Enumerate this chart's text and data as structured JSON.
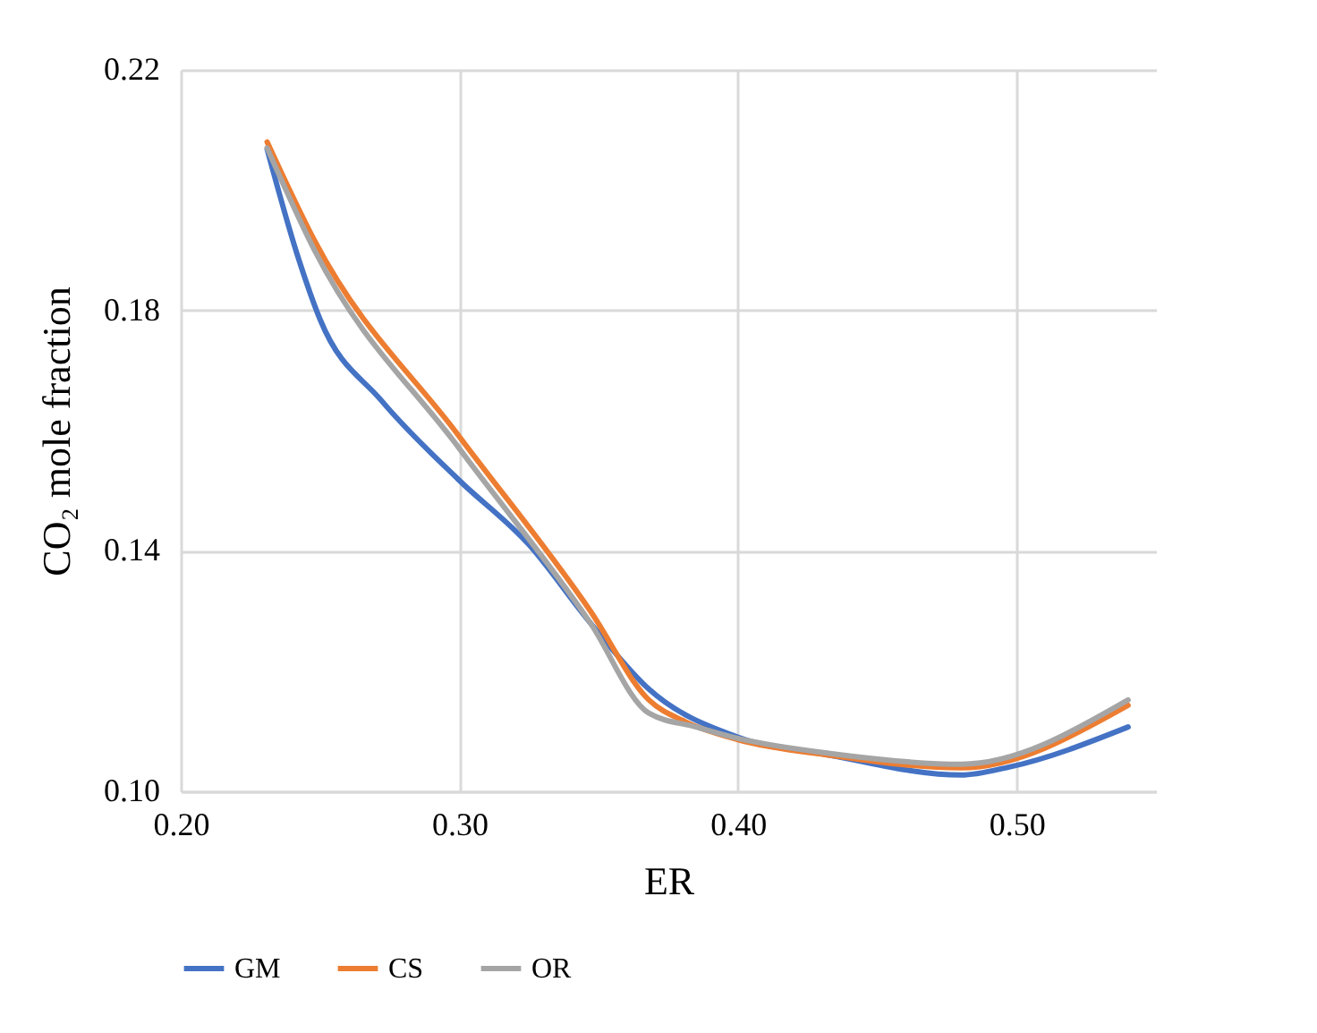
{
  "chart_data": {
    "type": "line",
    "xlabel": "ER",
    "ylabel": "CO₂ mole fraction",
    "xlim": [
      0.2,
      0.55
    ],
    "xticks": [
      {
        "value": 0.2,
        "label": "0.20"
      },
      {
        "value": 0.3,
        "label": "0.30"
      },
      {
        "value": 0.4,
        "label": "0.40"
      },
      {
        "value": 0.5,
        "label": "0.50"
      }
    ],
    "ylim": [
      0.1,
      0.22
    ],
    "yticks": [
      {
        "value": 0.1,
        "label": "0.10"
      },
      0.14,
      0.18,
      0.22
    ],
    "grid": true,
    "legend": "bottom",
    "marker": "none",
    "line_style": "solid",
    "series": [
      {
        "name": "GM",
        "color": "#4472c4",
        "x": [
          0.231,
          0.242,
          0.25,
          0.272,
          0.3,
          0.325,
          0.347,
          0.368,
          0.4,
          0.433,
          0.48,
          0.497,
          0.54
        ],
        "values": [
          0.2068,
          0.189,
          0.1785,
          0.165,
          0.1517,
          0.141,
          0.128,
          0.117,
          0.109,
          0.106,
          0.1027,
          0.104,
          0.1107
        ]
      },
      {
        "name": "CS",
        "color": "#ed7d31",
        "x": [
          0.231,
          0.248,
          0.3,
          0.347,
          0.368,
          0.381,
          0.4,
          0.433,
          0.48,
          0.54
        ],
        "values": [
          0.208,
          0.1916,
          0.159,
          0.13,
          0.1152,
          0.1116,
          0.1086,
          0.106,
          0.1039,
          0.1143
        ]
      },
      {
        "name": "OR",
        "color": "#a5a5a5",
        "x": [
          0.231,
          0.248,
          0.3,
          0.347,
          0.368,
          0.385,
          0.4,
          0.433,
          0.48,
          0.54
        ],
        "values": [
          0.207,
          0.19,
          0.157,
          0.128,
          0.113,
          0.1107,
          0.1088,
          0.1063,
          0.1045,
          0.1152
        ]
      }
    ]
  }
}
